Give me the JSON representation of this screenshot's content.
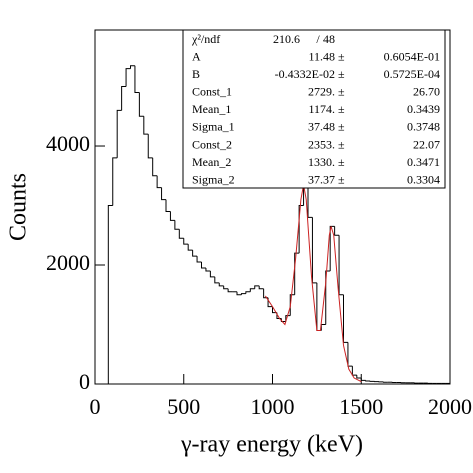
{
  "chart_data": {
    "type": "histogram",
    "xlabel": "γ-ray energy (keV)",
    "ylabel": "Counts",
    "xlim": [
      0,
      2000
    ],
    "xticks": [
      0,
      500,
      1000,
      1500,
      2000
    ],
    "ylim": [
      0,
      5950
    ],
    "yticks": [
      0,
      2000,
      4000
    ],
    "color": "#000000",
    "bins": [
      0,
      25,
      50,
      75,
      100,
      125,
      150,
      175,
      200,
      225,
      250,
      275,
      300,
      325,
      350,
      375,
      400,
      425,
      450,
      475,
      500,
      525,
      550,
      575,
      600,
      625,
      650,
      675,
      700,
      725,
      750,
      775,
      800,
      825,
      850,
      875,
      900,
      925,
      950,
      975,
      1000,
      1025,
      1050,
      1075,
      1100,
      1125,
      1150,
      1175,
      1200,
      1225,
      1250,
      1275,
      1300,
      1325,
      1350,
      1375,
      1400,
      1425,
      1450,
      1475,
      1500,
      1525,
      1550,
      1575,
      1600,
      1625,
      1650,
      1675,
      1700,
      1725,
      1750,
      1775,
      1800,
      1825,
      1850,
      1875,
      1900,
      1925,
      1950,
      1975,
      2000
    ],
    "values": [
      0,
      0,
      0,
      3000,
      3800,
      4600,
      5000,
      5300,
      5350,
      4900,
      4500,
      4200,
      3800,
      3500,
      3300,
      3100,
      2900,
      2750,
      2600,
      2450,
      2350,
      2250,
      2150,
      2050,
      1950,
      1900,
      1800,
      1700,
      1650,
      1600,
      1550,
      1550,
      1500,
      1520,
      1550,
      1600,
      1650,
      1600,
      1450,
      1300,
      1200,
      1100,
      1050,
      1150,
      1500,
      2200,
      3000,
      3350,
      2800,
      1700,
      900,
      1000,
      1900,
      2650,
      2500,
      1500,
      700,
      300,
      150,
      100,
      60,
      50,
      45,
      40,
      35,
      30,
      30,
      25,
      25,
      20,
      20,
      20,
      15,
      15,
      15,
      10,
      10,
      10,
      10,
      10
    ],
    "fit": {
      "color": "#cc2222",
      "x": [
        960,
        1000,
        1040,
        1070,
        1100,
        1130,
        1160,
        1175,
        1190,
        1220,
        1250,
        1270,
        1300,
        1320,
        1330,
        1345,
        1370,
        1400,
        1430,
        1460,
        1500
      ],
      "values": [
        1480,
        1300,
        1100,
        1000,
        1300,
        2100,
        3100,
        3350,
        3100,
        1800,
        900,
        900,
        1700,
        2500,
        2650,
        2500,
        1600,
        650,
        250,
        100,
        40
      ]
    },
    "stats": {
      "chi2_label": "χ²/ndf",
      "chi2": "210.6",
      "separator": "/",
      "ndf": "48",
      "plus_minus": "±",
      "rows": [
        [
          "A",
          "11.48",
          "0.6054E-01"
        ],
        [
          "B",
          "-0.4332E-02",
          "0.5725E-04"
        ],
        [
          "Const_1",
          "2729.",
          "26.70"
        ],
        [
          "Mean_1",
          "1174.",
          "0.3439"
        ],
        [
          "Sigma_1",
          "37.48",
          "0.3748"
        ],
        [
          "Const_2",
          "2353.",
          "22.07"
        ],
        [
          "Mean_2",
          "1330.",
          "0.3471"
        ],
        [
          "Sigma_2",
          "37.37",
          "0.3304"
        ]
      ]
    }
  }
}
